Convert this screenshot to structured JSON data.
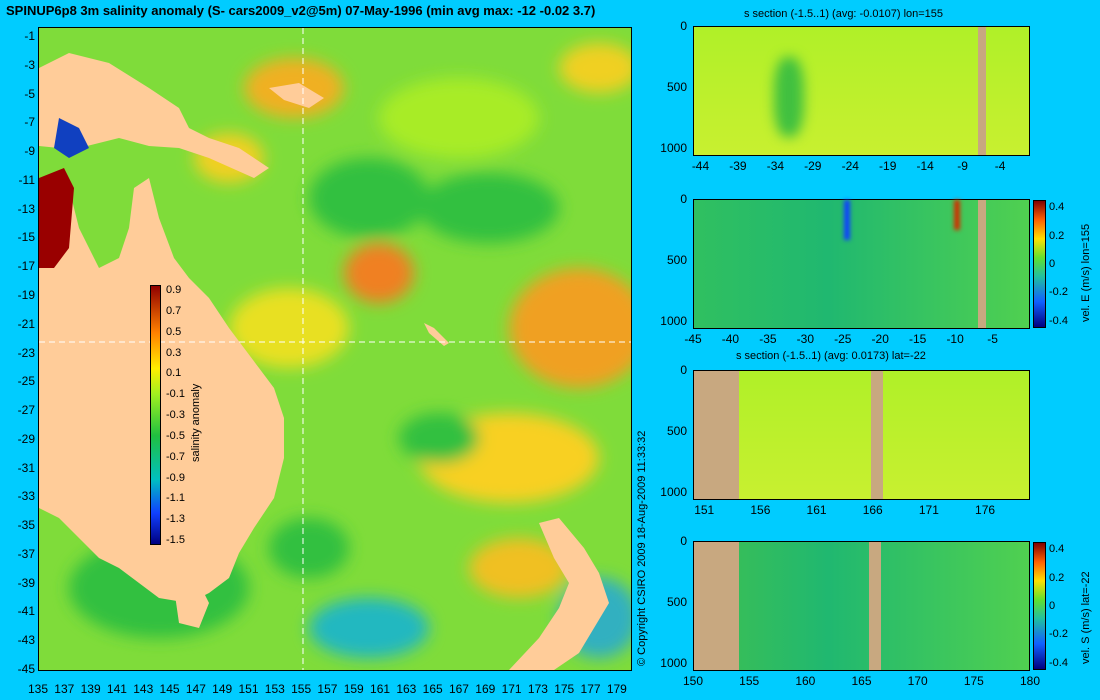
{
  "header": {
    "title": "SPINUP6p8 3m salinity anomaly (S- cars2009_v2@5m) 07-May-1996 (min avg max: -12 -0.02 3.7)",
    "copyright": "© Copyright CSIRO 2009  18-Aug-2009 11:33:32"
  },
  "colors": {
    "background": "#00ccff",
    "land_map": "#ffcc99",
    "land_section": "#c8a880",
    "ocean_base": "#88e040"
  },
  "chart_data": [
    {
      "id": "map",
      "type": "heatmap",
      "title": "SPINUP6p8 3m salinity anomaly (S- cars2009_v2@5m) 07-May-1996 (min avg max: -12 -0.02 3.7)",
      "x_ticks": [
        "135",
        "137",
        "139",
        "141",
        "143",
        "145",
        "147",
        "149",
        "151",
        "153",
        "155",
        "157",
        "159",
        "161",
        "163",
        "165",
        "167",
        "169",
        "171",
        "173",
        "175",
        "177",
        "179"
      ],
      "y_ticks": [
        "-1",
        "-3",
        "-5",
        "-7",
        "-9",
        "-11",
        "-13",
        "-15",
        "-17",
        "-19",
        "-21",
        "-23",
        "-25",
        "-27",
        "-29",
        "-31",
        "-33",
        "-35",
        "-37",
        "-39",
        "-41",
        "-43",
        "-45"
      ],
      "xlim": [
        135,
        180
      ],
      "ylim": [
        -45,
        0
      ],
      "crosshair": {
        "lon": 155,
        "lat": -22
      },
      "colorbar": {
        "label": "salinity anomaly",
        "ticks": [
          "0.9",
          "0.7",
          "0.5",
          "0.3",
          "0.1",
          "-0.1",
          "-0.3",
          "-0.5",
          "-0.7",
          "-0.9",
          "-1.1",
          "-1.3",
          "-1.5"
        ],
        "range": [
          -1.5,
          0.9
        ]
      }
    },
    {
      "id": "section1",
      "type": "heatmap",
      "title": "s section (-1.5..1) (avg: -0.0107) lon=155",
      "x_ticks": [
        "-44",
        "-39",
        "-34",
        "-29",
        "-24",
        "-19",
        "-14",
        "-9",
        "-4"
      ],
      "y_ticks": [
        "0",
        "500",
        "1000"
      ],
      "xlim": [
        -45,
        0
      ],
      "ylim": [
        1050,
        0
      ]
    },
    {
      "id": "section2",
      "type": "heatmap",
      "title": "",
      "x_ticks": [
        "-45",
        "-40",
        "-35",
        "-30",
        "-25",
        "-20",
        "-15",
        "-10",
        "-5"
      ],
      "y_ticks": [
        "0",
        "500",
        "1000"
      ],
      "xlim": [
        -45,
        0
      ],
      "ylim": [
        1050,
        0
      ],
      "colorbar": {
        "label": "vel. E (m/s) lon=155",
        "ticks": [
          "0.4",
          "0.2",
          "0",
          "-0.2",
          "-0.4"
        ],
        "range": [
          -0.45,
          0.45
        ]
      }
    },
    {
      "id": "section3",
      "type": "heatmap",
      "title": "s section (-1.5..1) (avg: 0.0173) lat=-22",
      "x_ticks": [
        "151",
        "156",
        "161",
        "166",
        "171",
        "176"
      ],
      "y_ticks": [
        "0",
        "500",
        "1000"
      ],
      "xlim": [
        150,
        180
      ],
      "ylim": [
        1050,
        0
      ]
    },
    {
      "id": "section4",
      "type": "heatmap",
      "title": "",
      "x_ticks": [
        "150",
        "155",
        "160",
        "165",
        "170",
        "175",
        "180"
      ],
      "y_ticks": [
        "0",
        "500",
        "1000"
      ],
      "xlim": [
        150,
        180
      ],
      "ylim": [
        1050,
        0
      ],
      "colorbar": {
        "label": "vel. S (m/s) lat=-22",
        "ticks": [
          "0.4",
          "0.2",
          "0",
          "-0.2",
          "-0.4"
        ],
        "range": [
          -0.45,
          0.45
        ]
      }
    }
  ]
}
